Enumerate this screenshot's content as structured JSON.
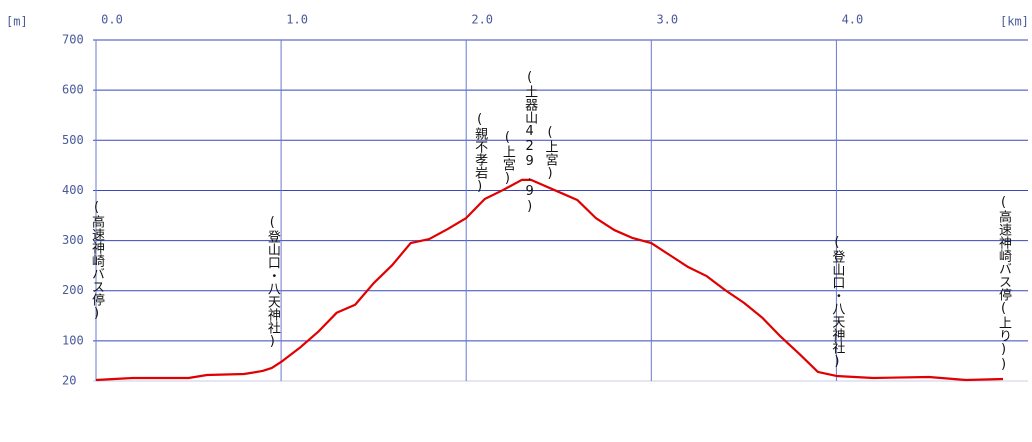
{
  "chart_data": {
    "type": "line",
    "y_unit": "[m]",
    "x_unit": "[km]",
    "x": [
      0,
      0.2,
      0.5,
      0.6,
      0.8,
      0.9,
      0.95,
      1.0,
      1.1,
      1.2,
      1.3,
      1.4,
      1.5,
      1.6,
      1.7,
      1.8,
      1.9,
      2.0,
      2.1,
      2.2,
      2.3,
      2.35,
      2.4,
      2.5,
      2.6,
      2.7,
      2.8,
      2.9,
      3.0,
      3.1,
      3.2,
      3.3,
      3.4,
      3.5,
      3.6,
      3.7,
      3.8,
      3.9,
      4.0,
      4.2,
      4.5,
      4.7,
      4.9
    ],
    "series": [
      {
        "color": "#e00000",
        "values": [
          22,
          26,
          26,
          32,
          34,
          40,
          46,
          58,
          86,
          118,
          156,
          172,
          215,
          251,
          295,
          303,
          323,
          345,
          383,
          401,
          421,
          421,
          413,
          397,
          381,
          345,
          321,
          305,
          295,
          271,
          247,
          229,
          201,
          176,
          146,
          108,
          74,
          38,
          30,
          26,
          28,
          22,
          24
        ]
      }
    ],
    "xlim": [
      0,
      4.9
    ],
    "ylim": [
      20,
      700
    ],
    "xticks": [
      {
        "value": 0,
        "label": "0.0"
      },
      {
        "value": 1,
        "label": "1.0"
      },
      {
        "value": 2,
        "label": "2.0"
      },
      {
        "value": 3,
        "label": "3.0"
      },
      {
        "value": 4,
        "label": "4.0"
      }
    ],
    "yticks": [
      20,
      100,
      200,
      300,
      400,
      500,
      600,
      700
    ],
    "grid": true,
    "annotations": [
      {
        "x": 0.0,
        "text": "(高速神崎バス停)"
      },
      {
        "x": 0.95,
        "text": "(登山口・八天神社)"
      },
      {
        "x": 2.07,
        "text": "(親不孝岩)"
      },
      {
        "x": 2.22,
        "text": "(上宮)"
      },
      {
        "x": 2.34,
        "text": "(土器山429.9)"
      },
      {
        "x": 2.45,
        "text": "(上宮)"
      },
      {
        "x": 4.0,
        "text": "(登山口・八天神社)"
      },
      {
        "x": 4.9,
        "text": "(高速神崎バス停(上り))"
      }
    ]
  }
}
